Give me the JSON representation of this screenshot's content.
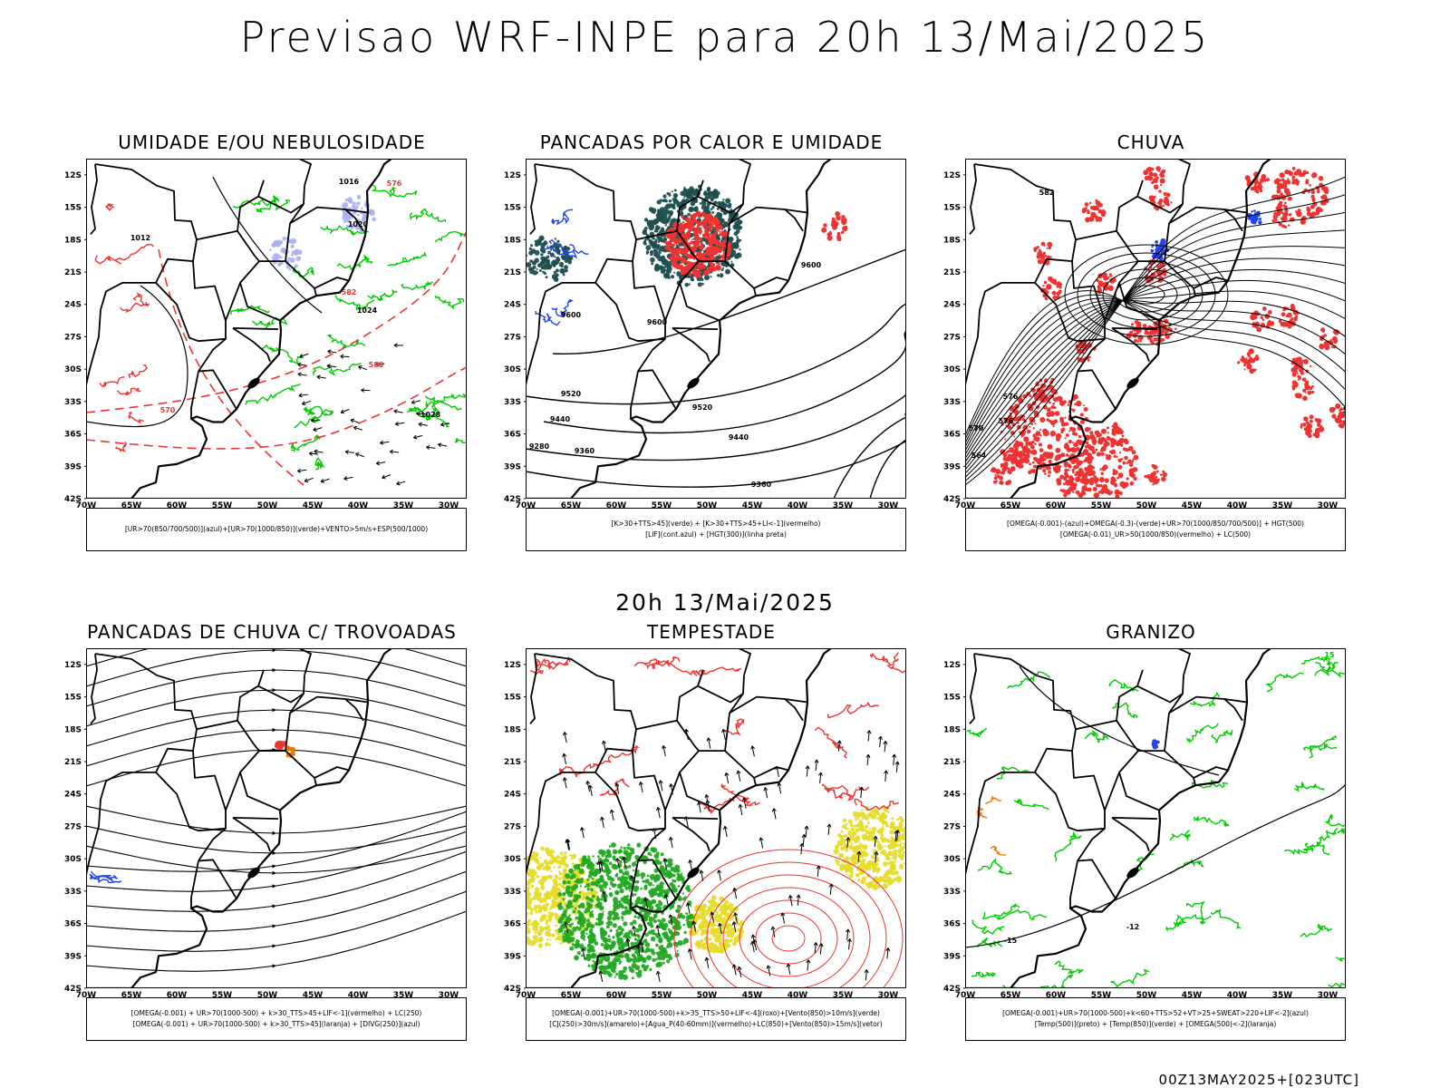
{
  "title": "Previsao WRF-INPE  para 20h 13/Mai/2025",
  "mid_title": "20h 13/Mai/2025",
  "footer": "00Z13MAY2025+[023UTC]",
  "lat_labels": [
    "12S",
    "15S",
    "18S",
    "21S",
    "24S",
    "27S",
    "30S",
    "33S",
    "36S",
    "39S",
    "42S"
  ],
  "lon_labels": [
    "70W",
    "65W",
    "60W",
    "55W",
    "50W",
    "45W",
    "40W",
    "35W",
    "30W"
  ],
  "colors": {
    "land_outline": "#000000",
    "green": "#00cc00",
    "red": "#ee3333",
    "blue": "#2244ee",
    "lavender": "#aab0f0",
    "dark_teal": "#1f4f4f",
    "yellow": "#e6dc2a",
    "orange": "#ee7700"
  },
  "panels": [
    {
      "id": "umidade",
      "title": "UMIDADE E/OU NEBULOSIDADE",
      "legend": [
        "[UR>70(850/700/500)](azul)+[UR>70(1000/850)](verde)+VENTO>5m/s+ESP(500/1000)"
      ],
      "contour_labels": [
        "1012",
        "1016",
        "1020",
        "1024",
        "1028",
        "570",
        "576",
        "582",
        "588"
      ]
    },
    {
      "id": "pancadas-calor",
      "title": "PANCADAS POR CALOR E UMIDADE",
      "legend": [
        "[K>30+TTS>45](verde) + [K>30+TTS>45+LI<-1](vermelho)",
        "[LIF](cont.azul) + [HGT(300)](linha preta)"
      ],
      "contour_labels": [
        "9600",
        "9520",
        "9440",
        "9360",
        "9280"
      ]
    },
    {
      "id": "chuva",
      "title": "CHUVA",
      "legend": [
        "[OMEGA(-0.001)-(azul)+OMEGA(-0.3)-(verde)+UR>70(1000/850/700/500)] + HGT(500)",
        "[OMEGA(-0.01)_UR>50(1000/850)(vermelho) + LC(500)"
      ],
      "contour_labels": [
        "582",
        "576",
        "570",
        "564"
      ]
    },
    {
      "id": "trovoadas",
      "title": "PANCADAS DE CHUVA C/ TROVOADAS",
      "legend": [
        "[OMEGA(-0.001) + UR>70(1000-500) + k>30_TTS>45+LIF<-1](vermelho) + LC(250)",
        "[OMEGA(-0.001) + UR>70(1000-500) + k>30_TTS>45](laranja) + [DIVG(250)](azul)"
      ],
      "contour_labels": []
    },
    {
      "id": "tempestade",
      "title": "TEMPESTADE",
      "legend": [
        "[OMEGA(-0.001)+UR>70(1000-500)+k>35_TTS>50+LIF<-4](roxo)+[Vento(850)>10m/s](verde)",
        "[CJ(250)>30m/s](amarelo)+[Agua_P(40-60mm)](vermelho)+LC(850)+[Vento(850)>15m/s](vetor)"
      ],
      "contour_labels": []
    },
    {
      "id": "granizo",
      "title": "GRANIZO",
      "legend": [
        "[OMEGA(-0.001)+UR>70(1000-500)+k<60+TTS>52+VT>25+SWEAT>220+LIF<-2](azul)",
        "[Temp(500)](preto) + [Temp(850)](verde) + [OMEGA(500)<-2](laranja)"
      ],
      "contour_labels": [
        "-12",
        "-15",
        "15"
      ]
    }
  ]
}
